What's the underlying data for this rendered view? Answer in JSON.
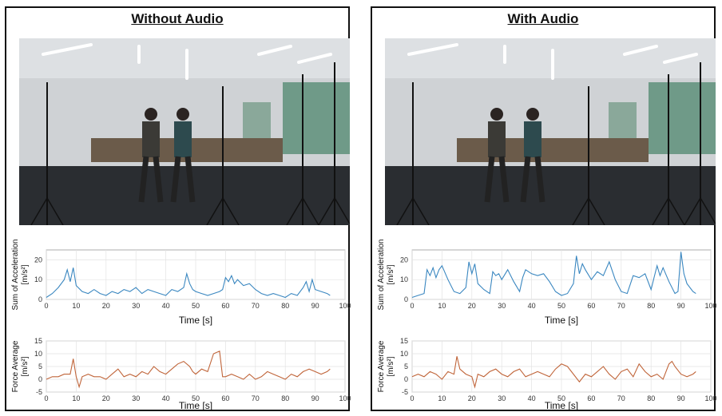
{
  "panels": [
    {
      "title": "Without Audio",
      "photo": {
        "scene": "two-dancers-motion-capture-studio",
        "variant": "apart"
      },
      "chart_data": [
        {
          "type": "line",
          "ylabel": "Sum of Acceleration\n[m/s²]",
          "xlabel": "Time [s]",
          "xlim": [
            0,
            100
          ],
          "ylim": [
            0,
            25
          ],
          "xticks": [
            0,
            10,
            20,
            30,
            40,
            50,
            60,
            70,
            80,
            90,
            100
          ],
          "yticks": [
            0,
            10,
            20
          ],
          "grid": true,
          "color": "#3a87c0",
          "series": [
            {
              "x": [
                0,
                2,
                4,
                6,
                7,
                8,
                9,
                10,
                12,
                14,
                16,
                18,
                20,
                22,
                24,
                26,
                28,
                30,
                32,
                34,
                36,
                38,
                40,
                42,
                44,
                46,
                47,
                48,
                49,
                50,
                52,
                54,
                56,
                58,
                59,
                60,
                61,
                62,
                63,
                64,
                66,
                68,
                70,
                72,
                74,
                76,
                78,
                80,
                82,
                84,
                86,
                87,
                88,
                89,
                90,
                92,
                94,
                95
              ],
              "y": [
                1,
                3,
                6,
                10,
                15,
                9,
                16,
                7,
                4,
                3,
                5,
                3,
                2,
                4,
                3,
                5,
                4,
                6,
                3,
                5,
                4,
                3,
                2,
                5,
                4,
                6,
                13,
                8,
                5,
                4,
                3,
                2,
                3,
                4,
                5,
                11,
                9,
                12,
                8,
                10,
                7,
                8,
                5,
                3,
                2,
                3,
                2,
                1,
                3,
                2,
                6,
                9,
                4,
                10,
                5,
                4,
                3,
                2
              ]
            }
          ]
        },
        {
          "type": "line",
          "ylabel": "Force Average\n[m/s²]",
          "xlabel": "Time [s]",
          "xlim": [
            0,
            100
          ],
          "ylim": [
            -5,
            15
          ],
          "xticks": [
            0,
            10,
            20,
            30,
            40,
            50,
            60,
            70,
            80,
            90,
            100
          ],
          "yticks": [
            -5,
            0,
            5,
            10,
            15
          ],
          "grid": true,
          "color": "#c0653a",
          "series": [
            {
              "x": [
                0,
                2,
                4,
                6,
                8,
                9,
                10,
                11,
                12,
                14,
                16,
                18,
                20,
                22,
                24,
                26,
                28,
                30,
                32,
                34,
                36,
                38,
                40,
                42,
                44,
                46,
                48,
                49,
                50,
                52,
                54,
                56,
                58,
                59,
                60,
                62,
                64,
                66,
                68,
                70,
                72,
                74,
                76,
                78,
                80,
                82,
                84,
                86,
                88,
                90,
                92,
                94,
                95
              ],
              "y": [
                0,
                1,
                1,
                2,
                2,
                8,
                1,
                -3,
                1,
                2,
                1,
                1,
                0,
                2,
                4,
                1,
                2,
                1,
                3,
                2,
                5,
                3,
                2,
                4,
                6,
                7,
                5,
                3,
                2,
                4,
                3,
                10,
                11,
                1,
                1,
                2,
                1,
                0,
                2,
                0,
                1,
                3,
                2,
                1,
                0,
                2,
                1,
                3,
                4,
                3,
                2,
                3,
                4
              ]
            }
          ]
        }
      ]
    },
    {
      "title": "With Audio",
      "photo": {
        "scene": "two-dancers-motion-capture-studio",
        "variant": "close"
      },
      "chart_data": [
        {
          "type": "line",
          "ylabel": "Sum of Acceleration\n[m/s²]",
          "xlabel": "Time [s]",
          "xlim": [
            0,
            100
          ],
          "ylim": [
            0,
            25
          ],
          "xticks": [
            0,
            10,
            20,
            30,
            40,
            50,
            60,
            70,
            80,
            90,
            100
          ],
          "yticks": [
            0,
            10,
            20
          ],
          "grid": true,
          "color": "#3a87c0",
          "series": [
            {
              "x": [
                0,
                2,
                4,
                5,
                6,
                7,
                8,
                9,
                10,
                12,
                14,
                16,
                18,
                19,
                20,
                21,
                22,
                24,
                26,
                27,
                28,
                29,
                30,
                32,
                34,
                36,
                37,
                38,
                40,
                42,
                44,
                46,
                48,
                50,
                52,
                54,
                55,
                56,
                57,
                58,
                60,
                62,
                64,
                66,
                68,
                70,
                72,
                74,
                76,
                78,
                80,
                81,
                82,
                83,
                84,
                86,
                88,
                89,
                90,
                91,
                92,
                94,
                95
              ],
              "y": [
                1,
                2,
                3,
                15,
                12,
                16,
                11,
                15,
                17,
                10,
                4,
                3,
                6,
                19,
                13,
                18,
                8,
                5,
                3,
                14,
                12,
                13,
                10,
                15,
                9,
                4,
                11,
                15,
                13,
                12,
                13,
                9,
                4,
                2,
                3,
                8,
                22,
                13,
                18,
                15,
                10,
                14,
                12,
                19,
                10,
                4,
                3,
                12,
                11,
                13,
                5,
                11,
                17,
                12,
                16,
                9,
                3,
                4,
                24,
                13,
                8,
                4,
                3
              ]
            }
          ]
        },
        {
          "type": "line",
          "ylabel": "Force Average\n[m/s²]",
          "xlabel": "Time [s]",
          "xlim": [
            0,
            100
          ],
          "ylim": [
            -5,
            15
          ],
          "xticks": [
            0,
            10,
            20,
            30,
            40,
            50,
            60,
            70,
            80,
            90,
            100
          ],
          "yticks": [
            -5,
            0,
            5,
            10,
            15
          ],
          "grid": true,
          "color": "#c0653a",
          "series": [
            {
              "x": [
                0,
                2,
                4,
                6,
                8,
                10,
                12,
                14,
                15,
                16,
                18,
                20,
                21,
                22,
                24,
                26,
                28,
                30,
                32,
                34,
                36,
                38,
                40,
                42,
                44,
                46,
                48,
                50,
                52,
                54,
                56,
                58,
                60,
                62,
                64,
                66,
                68,
                70,
                72,
                74,
                76,
                78,
                80,
                82,
                84,
                86,
                87,
                88,
                90,
                92,
                94,
                95
              ],
              "y": [
                1,
                2,
                1,
                3,
                2,
                0,
                3,
                2,
                9,
                4,
                2,
                1,
                -3,
                2,
                1,
                3,
                4,
                2,
                1,
                3,
                4,
                1,
                2,
                3,
                2,
                1,
                4,
                6,
                5,
                2,
                -1,
                2,
                1,
                3,
                5,
                2,
                0,
                3,
                4,
                1,
                6,
                3,
                1,
                2,
                0,
                6,
                7,
                5,
                2,
                1,
                2,
                3
              ]
            }
          ]
        }
      ]
    }
  ]
}
